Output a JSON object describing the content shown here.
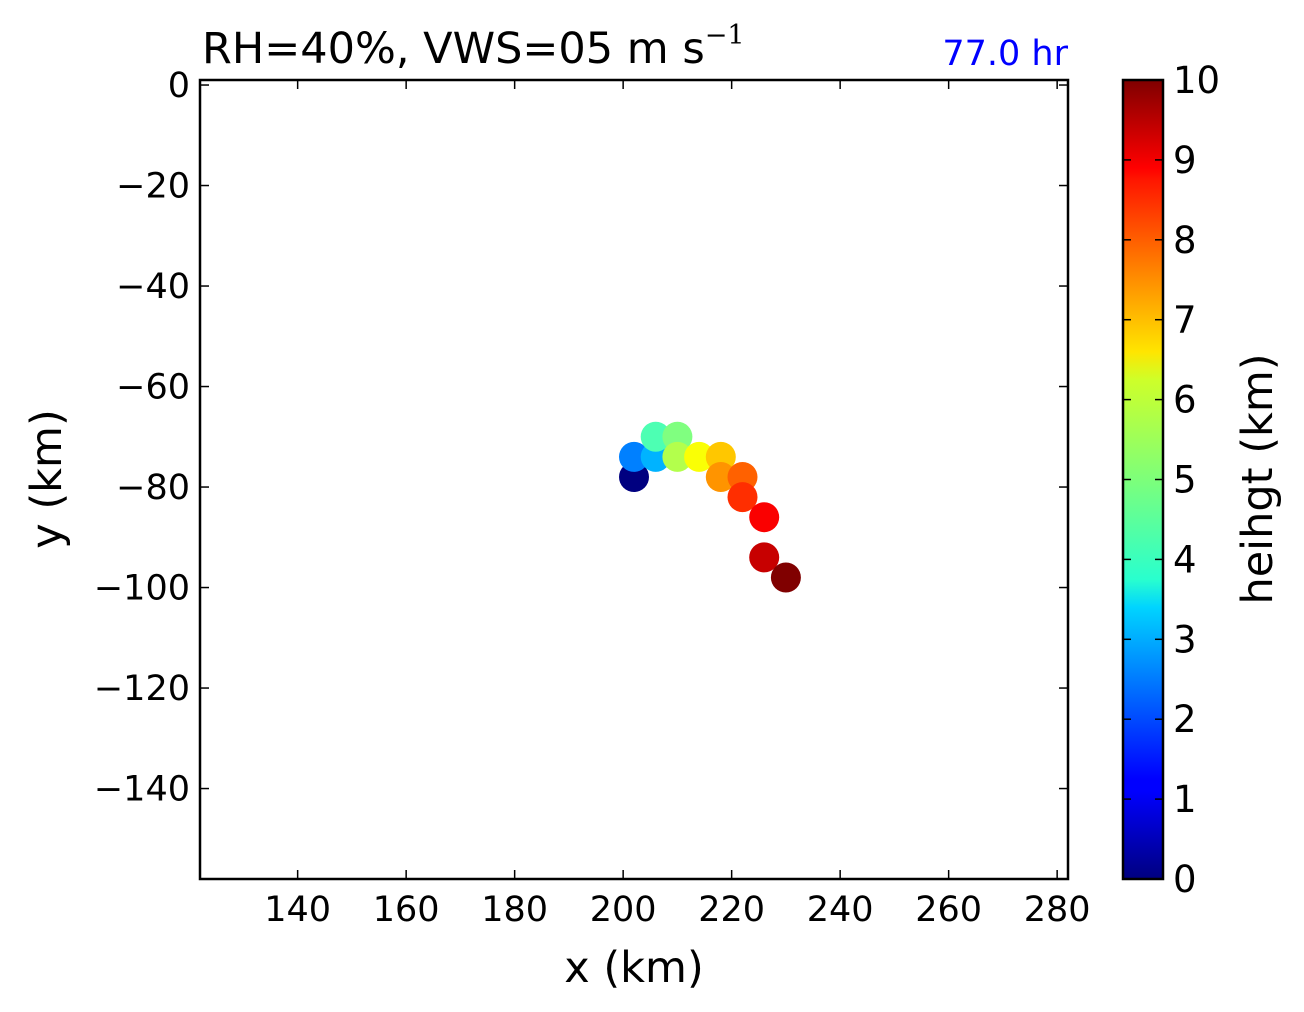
{
  "chart_data": {
    "type": "scatter",
    "title": {
      "main": "RH=40%, VWS=05 m s",
      "superscript": "−1"
    },
    "annotation": "77.0 hr",
    "annotation_color": "#0000ff",
    "xlabel": "x (km)",
    "ylabel": "y (km)",
    "xlim": [
      122,
      282
    ],
    "ylim": [
      -158,
      1
    ],
    "xticks": [
      140,
      160,
      180,
      200,
      220,
      240,
      260,
      280
    ],
    "yticks": [
      0,
      -20,
      -40,
      -60,
      -80,
      -100,
      -120,
      -140
    ],
    "xtick_labels": [
      "140",
      "160",
      "180",
      "200",
      "220",
      "240",
      "260",
      "280"
    ],
    "ytick_labels": [
      "0",
      "−20",
      "−40",
      "−60",
      "−80",
      "−100",
      "−120",
      "−140"
    ],
    "colorbar": {
      "label": "heihgt (km)",
      "colormap": "jet",
      "range": [
        0,
        10
      ],
      "ticks": [
        0,
        1,
        2,
        3,
        4,
        5,
        6,
        7,
        8,
        9,
        10
      ],
      "tick_labels": [
        "0",
        "1",
        "2",
        "3",
        "4",
        "5",
        "6",
        "7",
        "8",
        "9",
        "10"
      ]
    },
    "points": [
      {
        "x": 202,
        "y": -78,
        "height": 0
      },
      {
        "x": 202,
        "y": -74,
        "height": 2.5
      },
      {
        "x": 206,
        "y": -74,
        "height": 3
      },
      {
        "x": 206,
        "y": -70,
        "height": 4.5
      },
      {
        "x": 210,
        "y": -70,
        "height": 5
      },
      {
        "x": 210,
        "y": -74,
        "height": 5.5
      },
      {
        "x": 214,
        "y": -74,
        "height": 6.2
      },
      {
        "x": 218,
        "y": -74,
        "height": 6.8
      },
      {
        "x": 218,
        "y": -78,
        "height": 7.3
      },
      {
        "x": 222,
        "y": -78,
        "height": 7.8
      },
      {
        "x": 222,
        "y": -82,
        "height": 8.3
      },
      {
        "x": 226,
        "y": -86,
        "height": 8.8
      },
      {
        "x": 226,
        "y": -94,
        "height": 9.3
      },
      {
        "x": 230,
        "y": -98,
        "height": 10
      }
    ]
  }
}
